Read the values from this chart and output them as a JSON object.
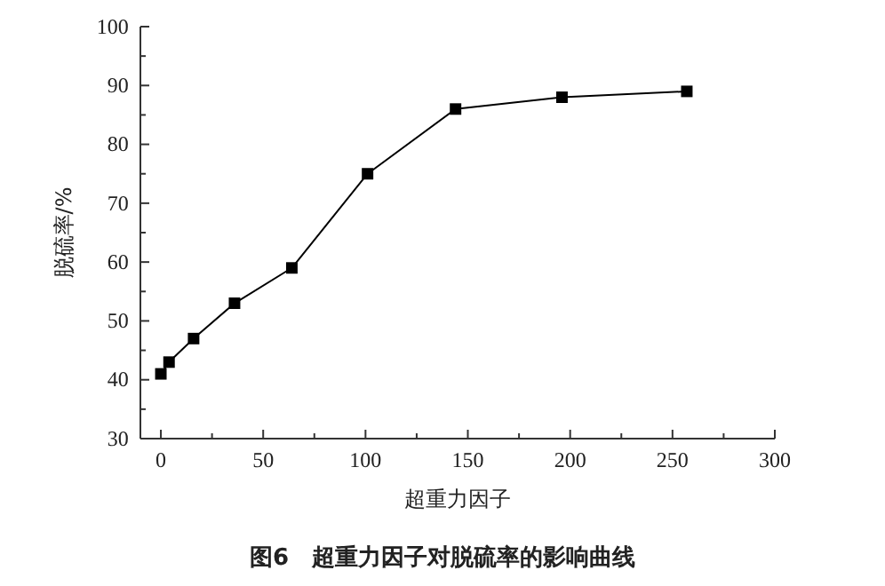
{
  "chart_data": {
    "type": "line",
    "title": "图6　超重力因子对脱硫率的影响曲线",
    "xlabel": "超重力因子",
    "ylabel": "脱硫率/%",
    "x": [
      0,
      4,
      16,
      36,
      64,
      101,
      144,
      196,
      257
    ],
    "values": [
      41,
      43,
      47,
      53,
      59,
      75,
      86,
      88,
      89
    ],
    "color": "#000000",
    "marker": "square",
    "line_style": "solid",
    "grid": false,
    "xlim": [
      -10,
      300
    ],
    "xticks": [
      0,
      {
        "value": 25,
        "label": null
      },
      50,
      {
        "value": 75,
        "label": null
      },
      100,
      {
        "value": 125,
        "label": null
      },
      150,
      {
        "value": 175,
        "label": null
      },
      200,
      {
        "value": 225,
        "label": null
      },
      250,
      {
        "value": 275,
        "label": null
      },
      300
    ],
    "ylim": [
      30,
      100
    ],
    "yticks": [
      30,
      {
        "value": 35,
        "label": null
      },
      40,
      {
        "value": 45,
        "label": null
      },
      50,
      {
        "value": 55,
        "label": null
      },
      60,
      {
        "value": 65,
        "label": null
      },
      70,
      {
        "value": 75,
        "label": null
      },
      80,
      {
        "value": 85,
        "label": null
      },
      90,
      {
        "value": 95,
        "label": null
      },
      100
    ]
  }
}
